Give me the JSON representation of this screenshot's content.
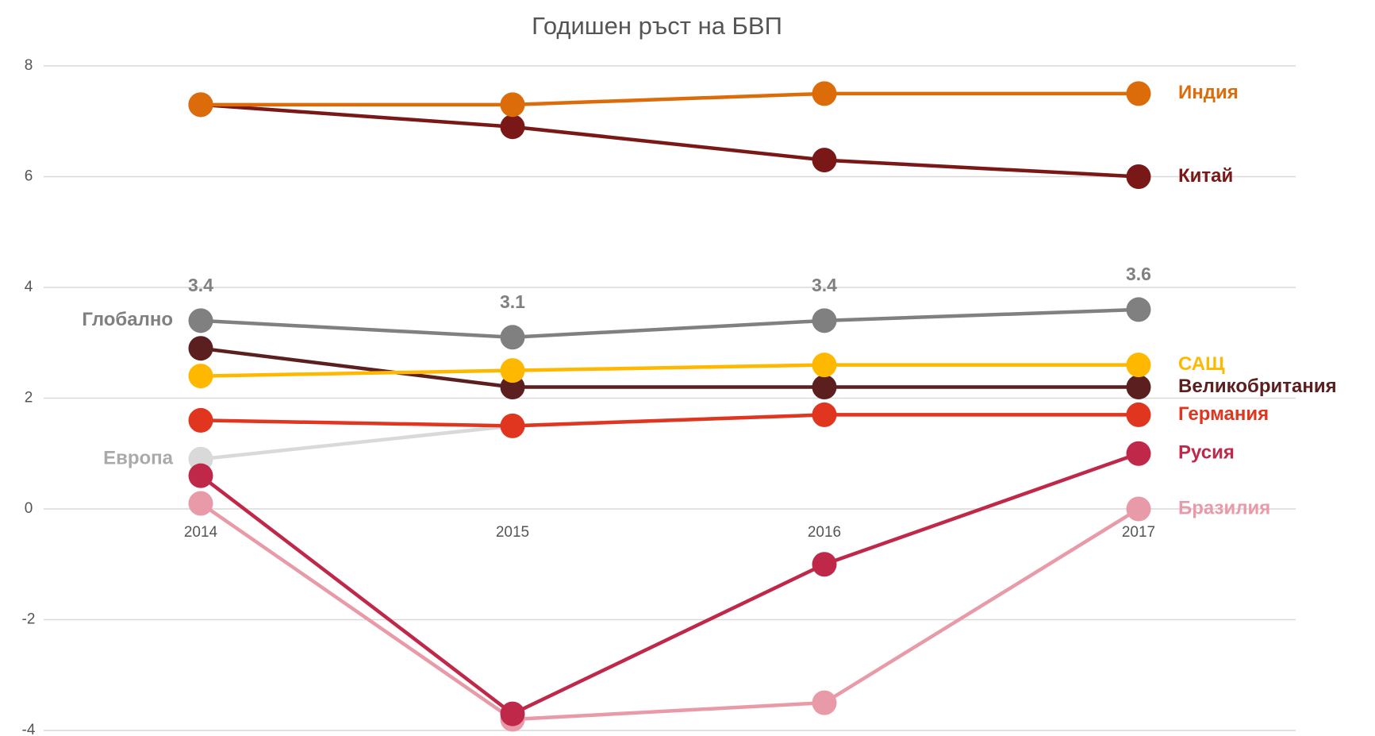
{
  "chart_data": {
    "type": "line",
    "title": "Годишен ръст на БВП",
    "categories": [
      "2014",
      "2015",
      "2016",
      "2017"
    ],
    "ylim": [
      -4,
      8
    ],
    "yticks": [
      -4,
      -2,
      0,
      2,
      4,
      6,
      8
    ],
    "grid": true,
    "series": [
      {
        "name": "Европа",
        "color": "#d9d9d9",
        "values": [
          0.9,
          1.5,
          1.7,
          1.7
        ]
      },
      {
        "name": "Бразилия",
        "color": "#e89aa8",
        "values": [
          0.1,
          -3.8,
          -3.5,
          0
        ]
      },
      {
        "name": "Русия",
        "color": "#c0284a",
        "values": [
          0.6,
          -3.7,
          -1,
          1
        ]
      },
      {
        "name": "Германия",
        "color": "#e0351e",
        "values": [
          1.6,
          1.5,
          1.7,
          1.7
        ]
      },
      {
        "name": "Великобритания",
        "color": "#5c1f1f",
        "values": [
          2.9,
          2.2,
          2.2,
          2.2
        ]
      },
      {
        "name": "САЩ",
        "color": "#ffb800",
        "values": [
          2.4,
          2.5,
          2.6,
          2.6
        ]
      },
      {
        "name": "Глобално",
        "color": "#808080",
        "values": [
          3.4,
          3.1,
          3.4,
          3.6
        ]
      },
      {
        "name": "Китай",
        "color": "#7a1717",
        "values": [
          7.3,
          6.9,
          6.3,
          6
        ]
      },
      {
        "name": "Индия",
        "color": "#dc6c0a",
        "values": [
          7.3,
          7.3,
          7.5,
          7.5
        ]
      }
    ]
  }
}
